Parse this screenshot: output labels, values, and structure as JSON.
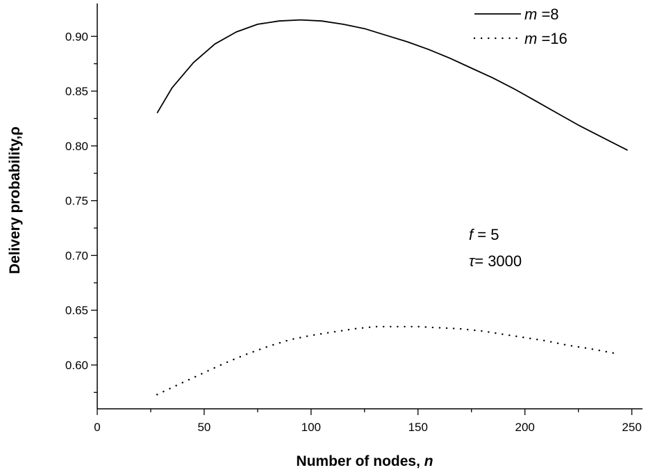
{
  "chart_data": {
    "type": "line",
    "xlabel": "Number of nodes, ",
    "xlabel_var": "n",
    "ylabel": "Delivery probability,ρ",
    "xlim": [
      0,
      255
    ],
    "ylim": [
      0.56,
      0.93
    ],
    "x_ticks": [
      0,
      50,
      100,
      150,
      200,
      250
    ],
    "y_ticks": [
      0.6,
      0.65,
      0.7,
      0.75,
      0.8,
      0.85,
      0.9
    ],
    "grid": false,
    "legend_position": "top-right",
    "series": [
      {
        "name": "=8",
        "name_var": "m ",
        "style": "solid",
        "color": "#000000",
        "x": [
          28,
          35,
          45,
          55,
          65,
          75,
          85,
          95,
          105,
          115,
          125,
          135,
          145,
          155,
          165,
          175,
          185,
          195,
          205,
          215,
          225,
          235,
          248
        ],
        "y": [
          0.83,
          0.853,
          0.876,
          0.893,
          0.904,
          0.911,
          0.914,
          0.915,
          0.914,
          0.911,
          0.907,
          0.901,
          0.895,
          0.888,
          0.88,
          0.871,
          0.862,
          0.852,
          0.841,
          0.83,
          0.819,
          0.809,
          0.796
        ]
      },
      {
        "name": "=16",
        "name_var": "m ",
        "style": "dotted",
        "color": "#000000",
        "x": [
          28,
          40,
          50,
          60,
          70,
          80,
          90,
          100,
          110,
          120,
          130,
          140,
          150,
          160,
          170,
          180,
          190,
          200,
          210,
          220,
          230,
          244
        ],
        "y": [
          0.573,
          0.584,
          0.593,
          0.602,
          0.61,
          0.617,
          0.623,
          0.627,
          0.63,
          0.633,
          0.635,
          0.635,
          0.635,
          0.634,
          0.633,
          0.631,
          0.628,
          0.625,
          0.622,
          0.618,
          0.615,
          0.61
        ]
      }
    ],
    "annotations": [
      {
        "var": "f",
        "text": " = 5"
      },
      {
        "var": "τ",
        "text": "= 3000"
      }
    ]
  }
}
